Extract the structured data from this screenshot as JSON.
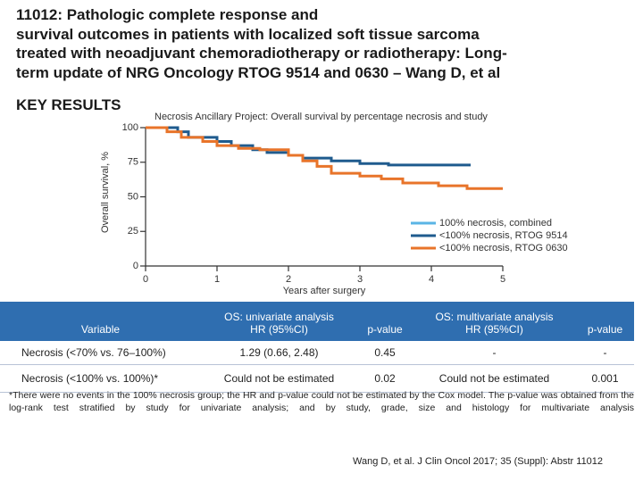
{
  "header": {
    "title_lines": [
      "11012: Pathologic complete response and",
      "survival outcomes in patients with localized soft tissue sarcoma",
      "treated with neoadjuvant chemoradiotherapy or radiotherapy: Long-",
      "term update of NRG Oncology RTOG 9514 and 0630 – Wang D, et al"
    ],
    "section": "KEY RESULTS"
  },
  "chart_data": {
    "type": "line",
    "step": true,
    "title": "Necrosis Ancillary Project: Overall survival by percentage necrosis and study",
    "ylabel": "Overall survival, %",
    "xlabel": "Years after surgery",
    "xlim": [
      0,
      5
    ],
    "xticks": [
      0,
      1,
      2,
      3,
      4,
      5
    ],
    "ylim": [
      0,
      100
    ],
    "yticks": [
      0,
      25,
      50,
      75,
      100
    ],
    "legend": "right",
    "series": [
      {
        "name": "100% necrosis, combined",
        "color": "#5ab4e5",
        "x": [
          0,
          0.3
        ],
        "values": [
          100,
          100
        ]
      },
      {
        "name": "<100% necrosis, RTOG 9514",
        "color": "#1f5b8e",
        "x": [
          0,
          0.45,
          0.45,
          0.6,
          0.6,
          1.0,
          1.0,
          1.2,
          1.2,
          1.5,
          1.5,
          1.7,
          1.7,
          2.0,
          2.0,
          2.2,
          2.2,
          2.6,
          2.6,
          3.0,
          3.0,
          3.4,
          3.4,
          4.55
        ],
        "values": [
          100,
          100,
          97,
          97,
          93,
          93,
          90,
          90,
          87,
          87,
          84,
          84,
          82,
          82,
          80,
          80,
          78,
          78,
          76,
          76,
          74,
          74,
          73,
          73
        ]
      },
      {
        "name": "<100% necrosis, RTOG 0630",
        "color": "#e8742a",
        "x": [
          0,
          0.3,
          0.3,
          0.5,
          0.5,
          0.8,
          0.8,
          1.0,
          1.0,
          1.3,
          1.3,
          1.6,
          1.6,
          2.0,
          2.0,
          2.2,
          2.2,
          2.4,
          2.4,
          2.6,
          2.6,
          3.0,
          3.0,
          3.3,
          3.3,
          3.6,
          3.6,
          4.1,
          4.1,
          4.5,
          4.5,
          5.0
        ],
        "values": [
          100,
          100,
          97,
          97,
          93,
          93,
          90,
          90,
          87,
          87,
          85,
          85,
          84,
          84,
          80,
          80,
          76,
          76,
          72,
          72,
          67,
          67,
          65,
          65,
          63,
          63,
          60,
          60,
          58,
          58,
          56,
          56
        ]
      }
    ]
  },
  "table": {
    "header": [
      [
        "Variable"
      ],
      [
        "OS: univariate analysis",
        "HR (95%CI)"
      ],
      [
        "p-value"
      ],
      [
        "OS: multivariate analysis",
        "HR (95%CI)"
      ],
      [
        "p-value"
      ]
    ],
    "rows": [
      [
        "Necrosis (<70% vs. 76–100%)",
        "1.29 (0.66, 2.48)",
        "0.45",
        "-",
        "-"
      ],
      [
        "Necrosis (<100% vs. 100%)*",
        "Could not be estimated",
        "0.02",
        "Could not be estimated",
        "0.001"
      ]
    ]
  },
  "footnote": "*There were no events in the 100% necrosis group; the HR and p-value could not be estimated by the Cox model. The p-value was obtained from the log-rank test stratified by study for univariate analysis; and by study, grade, size and histology for multivariate analysis",
  "citation": "Wang D, et al. J Clin Oncol 2017; 35 (Suppl): Abstr 11012"
}
